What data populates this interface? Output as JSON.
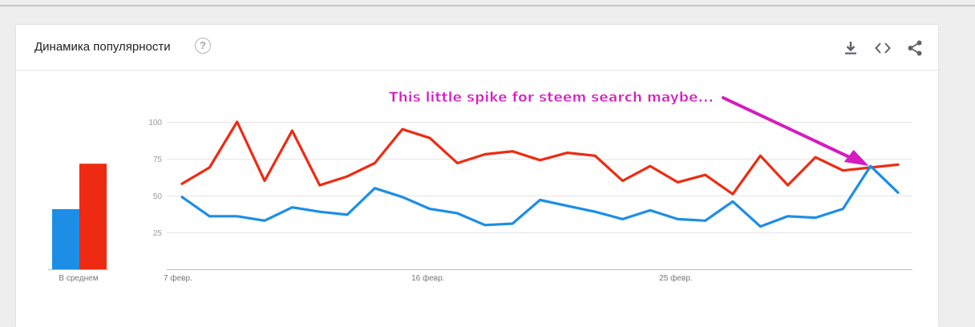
{
  "card": {
    "title": "Динамика популярности",
    "help_glyph": "?"
  },
  "header_icons": [
    "download-icon",
    "embed-icon",
    "share-icon"
  ],
  "colors": {
    "series_blue": "#1c8ee6",
    "series_red": "#ee2b12",
    "annotation": "#d41cc0"
  },
  "chart_data": [
    {
      "type": "bar",
      "categories": [
        "В среднем"
      ],
      "series": [
        {
          "values": [
            41
          ],
          "color": "#1c8ee6"
        },
        {
          "values": [
            72
          ],
          "color": "#ee2b12"
        }
      ],
      "ylim": [
        0,
        100
      ]
    },
    {
      "type": "line",
      "x_tick_labels": [
        "7 февр.",
        "16 февр.",
        "25 февр."
      ],
      "x_tick_index": [
        0,
        9,
        18
      ],
      "yticks": [
        25,
        50,
        75,
        100
      ],
      "ylim": [
        0,
        100
      ],
      "grid": true,
      "series": [
        {
          "color": "#ee2b12",
          "values": [
            58,
            69,
            100,
            60,
            94,
            57,
            63,
            72,
            95,
            89,
            72,
            78,
            80,
            74,
            79,
            77,
            60,
            70,
            59,
            64,
            51,
            77,
            57,
            76,
            67,
            69,
            71
          ]
        },
        {
          "color": "#1c8ee6",
          "values": [
            49,
            36,
            36,
            33,
            42,
            39,
            37,
            55,
            49,
            41,
            38,
            30,
            31,
            47,
            43,
            39,
            34,
            40,
            34,
            33,
            46,
            29,
            36,
            35,
            41,
            70,
            52
          ]
        }
      ],
      "annotation": {
        "text": "This little spike for steem search maybe...",
        "target_index": 25
      }
    }
  ]
}
